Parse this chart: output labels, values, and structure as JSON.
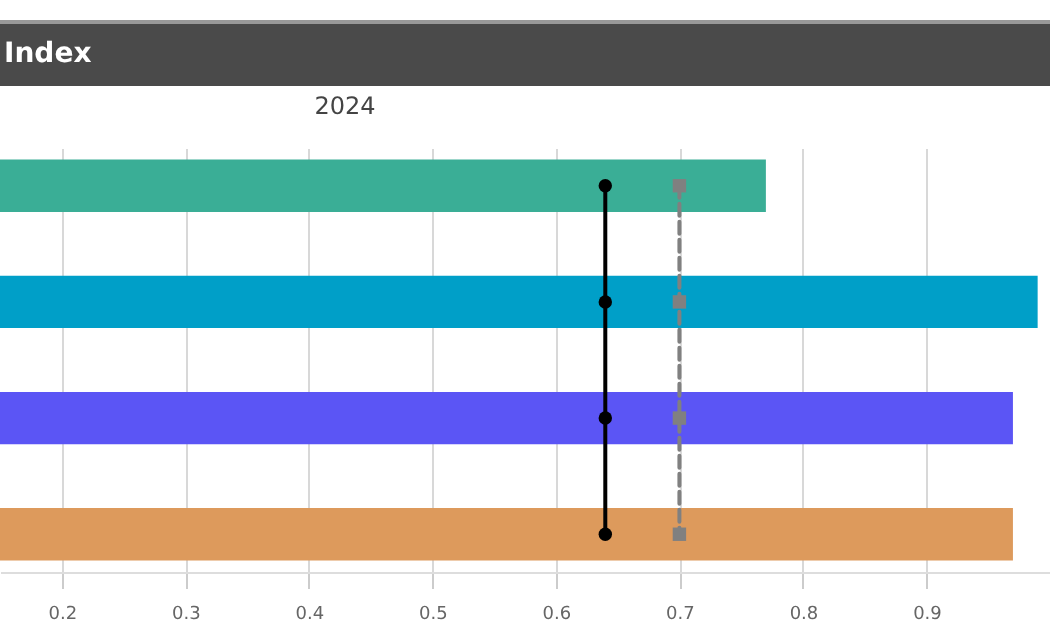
{
  "chart_data": {
    "type": "bar",
    "orientation": "horizontal",
    "title": "Index",
    "subtitle": "2024",
    "categories": [
      null,
      null,
      null,
      null
    ],
    "series": [
      {
        "colors": [
          "#3aae96",
          "#009fc8",
          "#5b55f5",
          "#dd9a5c"
        ],
        "values": [
          0.77,
          0.99,
          0.97,
          0.97
        ]
      },
      {
        "type": "line",
        "color": "#000000",
        "marker": "circle",
        "line_style": "solid",
        "values": [
          0.64,
          0.64,
          0.64,
          0.64
        ]
      },
      {
        "type": "line",
        "color": "#808080",
        "marker": "square",
        "line_style": "dashed",
        "values": [
          0.7,
          0.7,
          0.7,
          0.7
        ]
      }
    ],
    "xlim": [
      0.15,
      1.0
    ],
    "xticks": [
      0.2,
      0.3,
      0.4,
      0.5,
      0.6,
      0.7,
      0.8,
      0.9
    ],
    "grid": "x",
    "tick_labels": "x"
  }
}
